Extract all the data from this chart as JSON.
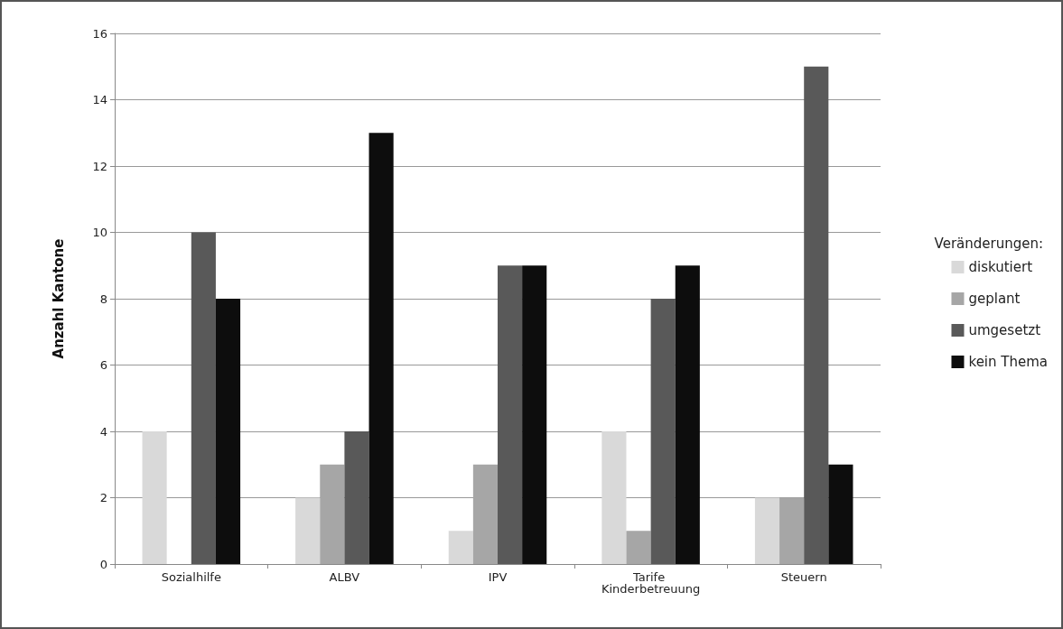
{
  "chart_data": {
    "type": "bar",
    "ylabel": "Anzahl Kantone",
    "legend_title": "Veränderungen:",
    "categories": [
      "Sozialhilfe",
      "ALBV",
      "IPV",
      "Tarife Kinderbetreuung",
      "Steuern"
    ],
    "series": [
      {
        "name": "diskutiert",
        "color": "#d9d9d9",
        "values": [
          4,
          2,
          1,
          4,
          2
        ]
      },
      {
        "name": "geplant",
        "color": "#a6a6a6",
        "values": [
          0,
          3,
          3,
          1,
          2
        ]
      },
      {
        "name": "umgesetzt",
        "color": "#595959",
        "values": [
          10,
          4,
          9,
          8,
          15
        ]
      },
      {
        "name": "kein Thema",
        "color": "#0d0d0d",
        "values": [
          8,
          13,
          9,
          9,
          3
        ]
      }
    ],
    "ylim": [
      0,
      16
    ],
    "yticks": [
      0,
      2,
      4,
      6,
      8,
      10,
      12,
      14,
      16
    ],
    "grid": "y",
    "legend": "right"
  }
}
